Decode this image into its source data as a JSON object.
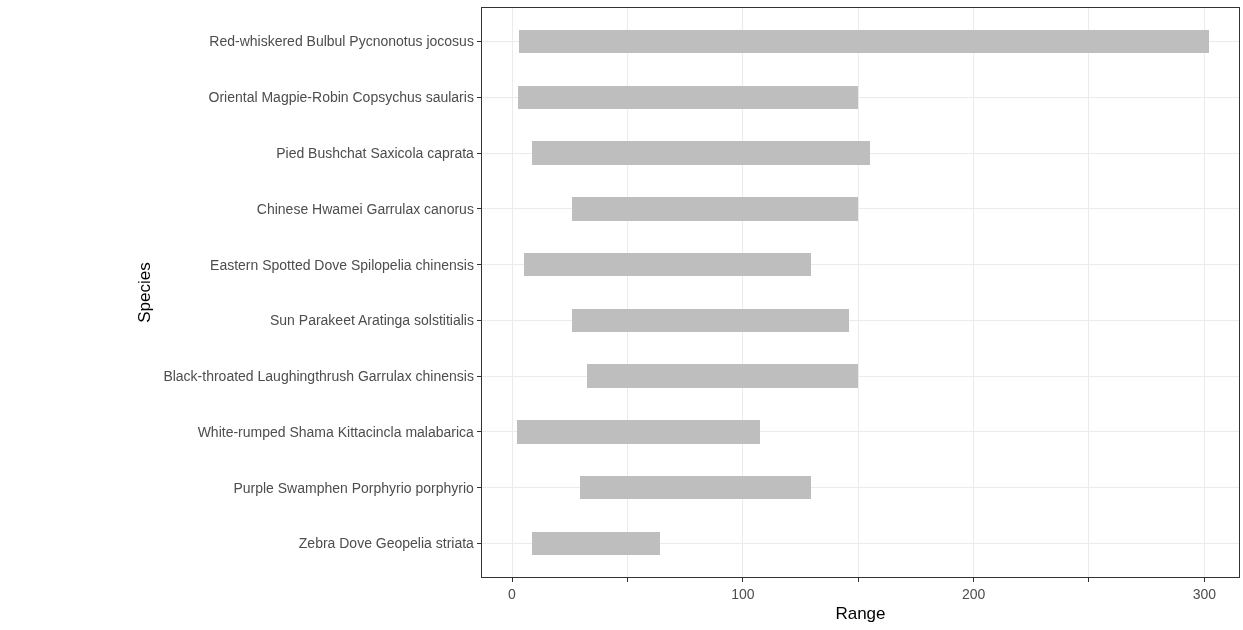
{
  "chart_data": {
    "type": "bar",
    "orientation": "horizontal",
    "xlabel": "Range",
    "ylabel": "Species",
    "categories": [
      "Red-whiskered Bulbul Pycnonotus jocosus",
      "Oriental Magpie-Robin Copsychus saularis",
      "Pied Bushchat Saxicola caprata",
      "Chinese Hwamei Garrulax canorus",
      "Eastern Spotted Dove Spilopelia chinensis",
      "Sun Parakeet Aratinga solstitialis",
      "Black-throated Laughingthrush Garrulax chinensis",
      "White-rumped Shama Kittacincla malabarica",
      "Purple Swamphen Porphyrio porphyrio",
      "Zebra Dove Geopelia striata"
    ],
    "base": [
      3,
      2.5,
      8.5,
      26,
      5,
      26,
      32.5,
      2,
      29.5,
      8.5
    ],
    "values": [
      299,
      147.5,
      146.5,
      124,
      124.5,
      120,
      117.5,
      105.5,
      100,
      55.5
    ],
    "color": "#bebebe",
    "xlim": [
      -13,
      315
    ],
    "xticks": [
      0,
      {
        "value": 50,
        "label": null
      },
      100,
      {
        "value": 150,
        "label": null
      },
      200,
      {
        "value": 250,
        "label": null
      },
      300
    ],
    "grid": true
  }
}
